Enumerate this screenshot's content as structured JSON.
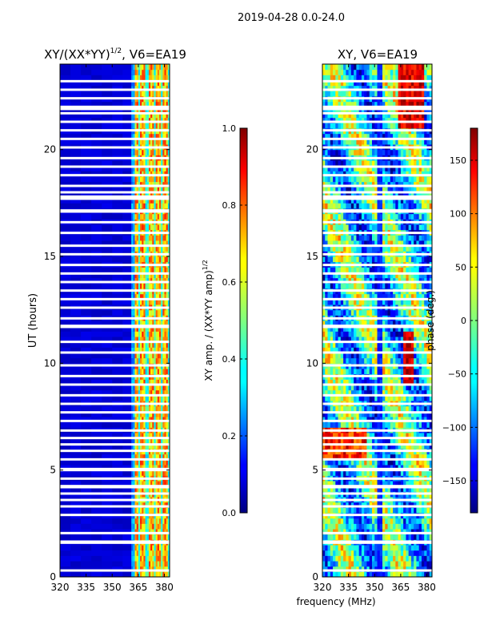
{
  "figure": {
    "suptitle": "2019-04-28 0.0-24.0",
    "shared_xlabel": "frequency (MHz)"
  },
  "chart_data": [
    {
      "type": "heatmap",
      "title_main": "XY/(XX*YY)",
      "title_exp": "1/2",
      "title_suffix": ", V6=EA19",
      "xlabel": "",
      "ylabel": "UT (hours)",
      "xlim": [
        320,
        383
      ],
      "ylim": [
        0,
        24
      ],
      "xticks": [
        320,
        335,
        350,
        365,
        380
      ],
      "yticks": [
        0,
        5,
        10,
        15,
        20
      ],
      "color_range": [
        0.0,
        1.0
      ],
      "colormap": "jet",
      "description_of_data": "normalized XY amplitude, mostly ~0.05 below 361 MHz, 0.4-0.8 in 361-383 MHz with bright channel stripes near 363, 367, 372, 376, 380 MHz",
      "colorbar": {
        "label_main": "XY amp. / (XX*YY amp)",
        "label_exp": "1/2",
        "ticks": [
          0.0,
          0.2,
          0.4,
          0.6,
          0.8,
          1.0
        ],
        "tick_labels": [
          "0.0",
          "0.2",
          "0.4",
          "0.6",
          "0.8",
          "1.0"
        ]
      },
      "flagged_ut_hours": [
        0.3,
        1.6,
        1.65,
        2.05,
        2.9,
        3.3,
        3.6,
        3.9,
        4.2,
        4.25,
        4.6,
        5.0,
        5.05,
        5.5,
        5.9,
        6.2,
        6.5,
        6.85,
        7.3,
        7.7,
        8.1,
        8.5,
        9.0,
        9.4,
        9.9,
        10.5,
        11.0,
        11.7,
        11.75,
        12.1,
        12.6,
        13.0,
        13.4,
        13.8,
        14.2,
        14.6,
        15.1,
        15.5,
        16.1,
        16.6,
        17.1,
        17.15,
        17.7,
        17.75,
        17.8,
        18.0,
        18.3,
        18.8,
        19.2,
        19.6,
        20.1,
        20.5,
        20.9,
        21.3,
        21.7,
        21.9,
        22.0,
        22.4,
        22.8,
        23.2
      ]
    },
    {
      "type": "heatmap",
      "title_main": "XY, V6=EA19",
      "xlabel": "frequency (MHz)",
      "ylabel": "",
      "xlim": [
        320,
        383
      ],
      "ylim": [
        0,
        24
      ],
      "xticks": [
        320,
        335,
        350,
        365,
        380
      ],
      "yticks": [
        0,
        5,
        10,
        15,
        20
      ],
      "color_range": [
        -180,
        180
      ],
      "colormap": "jet",
      "description_of_data": "XY phase in degrees, noisy; dark vertical stripe near 352 MHz and wrapping red/blue bands",
      "colorbar": {
        "label": "phase (deg.)",
        "ticks": [
          -150,
          -100,
          -50,
          0,
          50,
          100,
          150
        ],
        "tick_labels": [
          "−150",
          "−100",
          "−50",
          "0",
          "50",
          "100",
          "150"
        ]
      },
      "flagged_ut_hours": [
        0.3,
        1.6,
        1.65,
        2.05,
        2.9,
        3.3,
        3.6,
        3.9,
        4.2,
        4.25,
        4.6,
        5.0,
        5.05,
        5.5,
        5.9,
        6.2,
        6.5,
        6.85,
        7.3,
        7.7,
        8.1,
        8.5,
        9.0,
        9.4,
        9.9,
        10.5,
        11.0,
        11.7,
        11.75,
        12.1,
        12.6,
        13.0,
        13.4,
        13.8,
        14.2,
        14.6,
        15.1,
        15.5,
        16.1,
        16.6,
        17.1,
        17.15,
        17.7,
        17.75,
        17.8,
        18.0,
        18.3,
        18.8,
        19.2,
        19.6,
        20.1,
        20.5,
        20.9,
        21.3,
        21.7,
        21.9,
        22.0,
        22.4,
        22.8,
        23.2
      ]
    }
  ]
}
